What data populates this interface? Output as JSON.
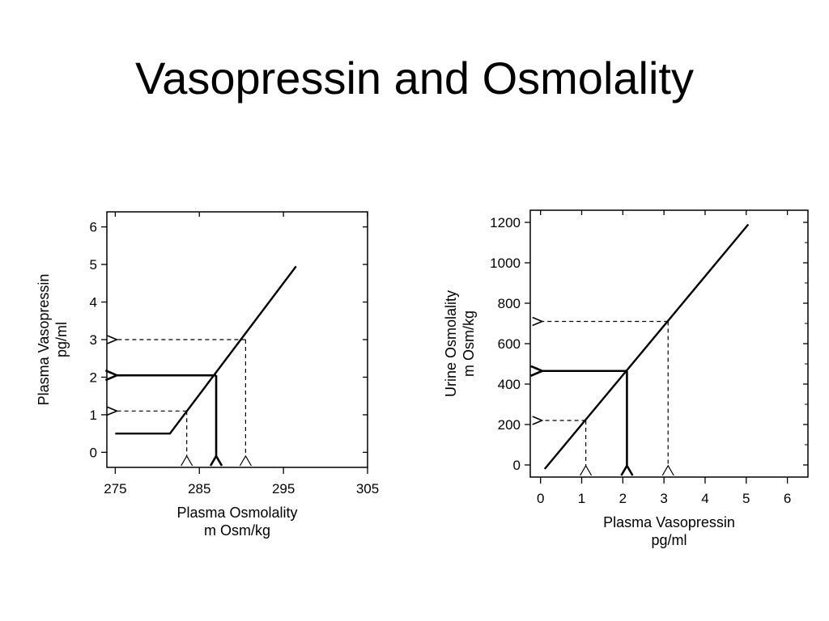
{
  "slide": {
    "title": "Vasopressin and Osmolality"
  },
  "chart_data": [
    {
      "type": "line",
      "xlabel": "Plasma Osmolality",
      "xunit": "m Osm/kg",
      "ylabel": "Plasma Vasopressin",
      "yunit": "pg/ml",
      "xlim": [
        274,
        305
      ],
      "ylim": [
        -0.4,
        6.4
      ],
      "xticks": [
        275,
        285,
        295,
        305
      ],
      "yticks": [
        0,
        1,
        2,
        3,
        4,
        5,
        6
      ],
      "grid": false,
      "series": [
        {
          "style": "solid",
          "x": [
            275,
            281.5,
            296.5
          ],
          "y": [
            0.5,
            0.5,
            4.95
          ]
        }
      ],
      "annotations": [
        {
          "style": "solid",
          "x": 287,
          "y": 2.05
        },
        {
          "style": "dashed",
          "x": 283.5,
          "y": 1.1
        },
        {
          "style": "dashed",
          "x": 290.5,
          "y": 3.0
        }
      ],
      "arrow_target_x": 275
    },
    {
      "type": "line",
      "xlabel": "Plasma Vasopressin",
      "xunit": "pg/ml",
      "ylabel": "Urine Osmolality",
      "yunit": "m Osm/kg",
      "xlim": [
        -0.25,
        6.5
      ],
      "ylim": [
        -60,
        1260
      ],
      "xticks": [
        0,
        1,
        2,
        3,
        4,
        5,
        6
      ],
      "yticks": [
        0,
        200,
        400,
        600,
        800,
        1000,
        1200
      ],
      "grid": false,
      "series": [
        {
          "style": "solid",
          "x": [
            0.1,
            5.05
          ],
          "y": [
            -20,
            1190
          ]
        }
      ],
      "annotations": [
        {
          "style": "solid",
          "x": 2.1,
          "y": 465
        },
        {
          "style": "dashed",
          "x": 1.1,
          "y": 220
        },
        {
          "style": "dashed",
          "x": 3.1,
          "y": 710
        }
      ],
      "arrow_target_x": 0
    }
  ]
}
